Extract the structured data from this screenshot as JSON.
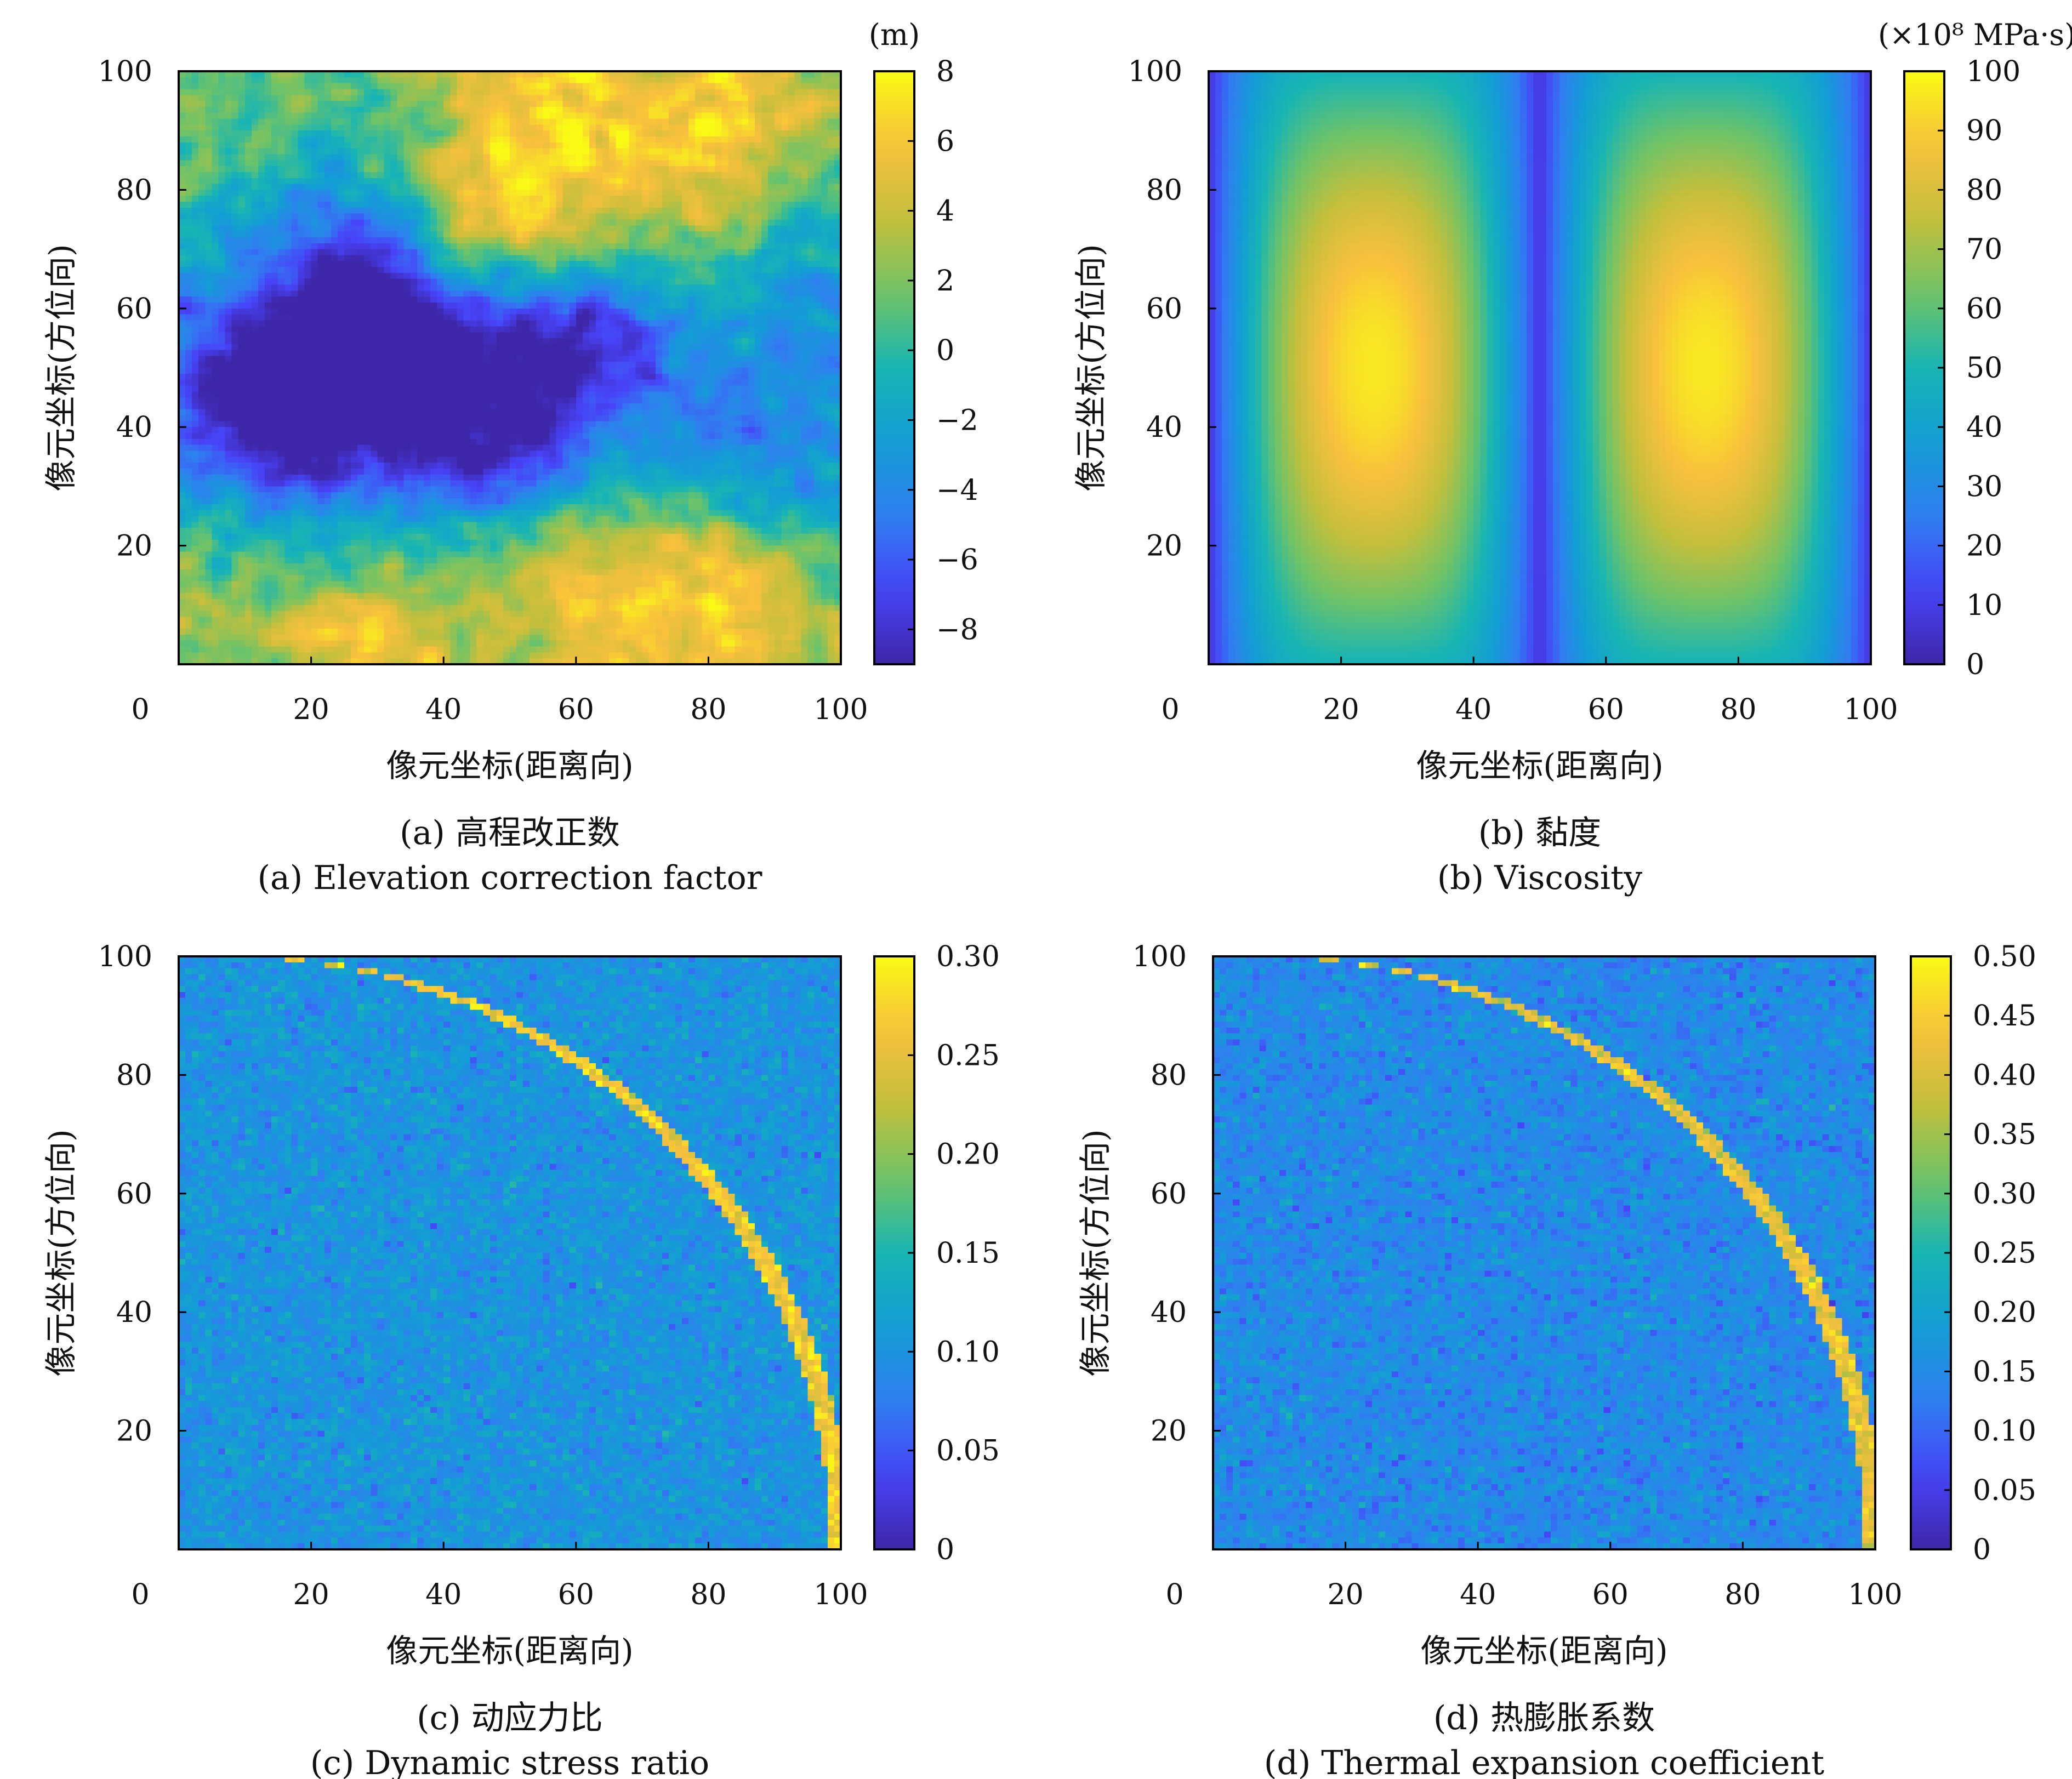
{
  "colormap_stops": [
    "#3e26a8",
    "#4743f8",
    "#2f7ff0",
    "#139dd5",
    "#18b5b3",
    "#6fc367",
    "#c3bf3c",
    "#f8c03d",
    "#f9fb14"
  ],
  "chart_data": [
    {
      "type": "heatmap",
      "id": "a",
      "field": "elevation",
      "caption_zh": "(a) 高程改正数",
      "caption_en": "(a) Elevation correction factor",
      "xlabel": "像元坐标(距离向)",
      "ylabel": "像元坐标(方位向)",
      "xlim": [
        0,
        100
      ],
      "ylim": [
        0,
        100
      ],
      "xticks": [
        "0",
        "20",
        "40",
        "60",
        "80",
        "100"
      ],
      "yticks": [
        "20",
        "40",
        "60",
        "80",
        "100"
      ],
      "colorbar": {
        "min": -9,
        "max": 8,
        "unit": "(m)",
        "ticks": [
          {
            "v": 8,
            "t": "8"
          },
          {
            "v": 6,
            "t": "6"
          },
          {
            "v": 4,
            "t": "4"
          },
          {
            "v": 2,
            "t": "2"
          },
          {
            "v": 0,
            "t": "0"
          },
          {
            "v": -2,
            "t": "−2"
          },
          {
            "v": -4,
            "t": "−4"
          },
          {
            "v": -6,
            "t": "−6"
          },
          {
            "v": -8,
            "t": "−8"
          }
        ]
      }
    },
    {
      "type": "heatmap",
      "id": "b",
      "field": "viscosity",
      "caption_zh": "(b) 黏度",
      "caption_en": "(b) Viscosity",
      "xlabel": "像元坐标(距离向)",
      "ylabel": "像元坐标(方位向)",
      "xlim": [
        0,
        100
      ],
      "ylim": [
        0,
        100
      ],
      "xticks": [
        "0",
        "20",
        "40",
        "60",
        "80",
        "100"
      ],
      "yticks": [
        "20",
        "40",
        "60",
        "80",
        "100"
      ],
      "colorbar": {
        "min": 0,
        "max": 100,
        "unit": "(×10⁸ MPa·s)",
        "ticks": [
          {
            "v": 100,
            "t": "100"
          },
          {
            "v": 90,
            "t": "90"
          },
          {
            "v": 80,
            "t": "80"
          },
          {
            "v": 70,
            "t": "70"
          },
          {
            "v": 60,
            "t": "60"
          },
          {
            "v": 50,
            "t": "50"
          },
          {
            "v": 40,
            "t": "40"
          },
          {
            "v": 30,
            "t": "30"
          },
          {
            "v": 20,
            "t": "20"
          },
          {
            "v": 10,
            "t": "10"
          },
          {
            "v": 0,
            "t": "0"
          }
        ]
      }
    },
    {
      "type": "heatmap",
      "id": "c",
      "field": "stress",
      "caption_zh": "(c) 动应力比",
      "caption_en": "(c) Dynamic stress ratio",
      "xlabel": "像元坐标(距离向)",
      "ylabel": "像元坐标(方位向)",
      "xlim": [
        0,
        100
      ],
      "ylim": [
        0,
        100
      ],
      "xticks": [
        "0",
        "20",
        "40",
        "60",
        "80",
        "100"
      ],
      "yticks": [
        "20",
        "40",
        "60",
        "80",
        "100"
      ],
      "colorbar": {
        "min": 0,
        "max": 0.3,
        "unit": "",
        "ticks": [
          {
            "v": 0.3,
            "t": "0.30"
          },
          {
            "v": 0.25,
            "t": "0.25"
          },
          {
            "v": 0.2,
            "t": "0.20"
          },
          {
            "v": 0.15,
            "t": "0.15"
          },
          {
            "v": 0.1,
            "t": "0.10"
          },
          {
            "v": 0.05,
            "t": "0.05"
          },
          {
            "v": 0,
            "t": "0"
          }
        ]
      }
    },
    {
      "type": "heatmap",
      "id": "d",
      "field": "thermal",
      "caption_zh": "(d) 热膨胀系数",
      "caption_en": "(d) Thermal expansion coefficient",
      "xlabel": "像元坐标(距离向)",
      "ylabel": "像元坐标(方位向)",
      "xlim": [
        0,
        100
      ],
      "ylim": [
        0,
        100
      ],
      "xticks": [
        "0",
        "20",
        "40",
        "60",
        "80",
        "100"
      ],
      "yticks": [
        "20",
        "40",
        "60",
        "80",
        "100"
      ],
      "colorbar": {
        "min": 0,
        "max": 0.5,
        "unit": "",
        "ticks": [
          {
            "v": 0.5,
            "t": "0.50"
          },
          {
            "v": 0.45,
            "t": "0.45"
          },
          {
            "v": 0.4,
            "t": "0.40"
          },
          {
            "v": 0.35,
            "t": "0.35"
          },
          {
            "v": 0.3,
            "t": "0.30"
          },
          {
            "v": 0.25,
            "t": "0.25"
          },
          {
            "v": 0.2,
            "t": "0.20"
          },
          {
            "v": 0.15,
            "t": "0.15"
          },
          {
            "v": 0.1,
            "t": "0.10"
          },
          {
            "v": 0.05,
            "t": "0.05"
          },
          {
            "v": 0,
            "t": "0"
          }
        ]
      }
    }
  ]
}
